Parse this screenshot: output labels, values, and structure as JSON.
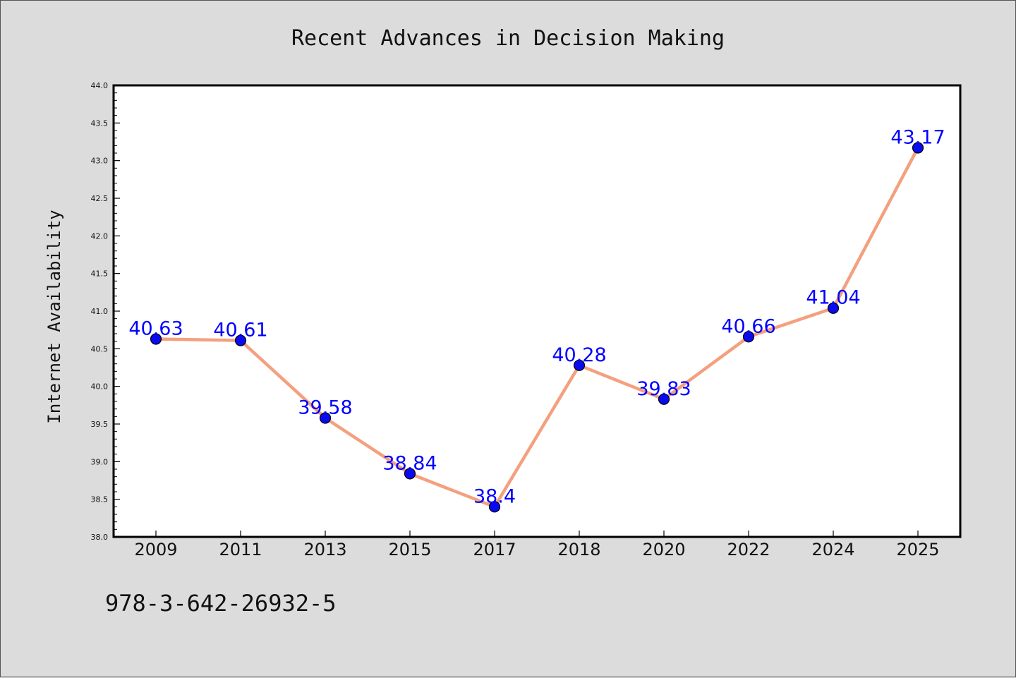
{
  "chart_data": {
    "type": "line",
    "title": "Recent Advances in Decision Making",
    "xlabel": "",
    "ylabel": "Internet Availability",
    "categories": [
      "2009",
      "2011",
      "2013",
      "2015",
      "2017",
      "2018",
      "2020",
      "2022",
      "2024",
      "2025"
    ],
    "values": [
      40.63,
      40.61,
      39.58,
      38.84,
      38.4,
      40.28,
      39.83,
      40.66,
      41.04,
      43.17
    ],
    "data_labels": [
      "40.63",
      "40.61",
      "39.58",
      "38.84",
      "38.4",
      "40.28",
      "39.83",
      "40.66",
      "41.04",
      "43.17"
    ],
    "ylim": [
      38.0,
      44.0
    ],
    "yticks": [
      "38.0",
      "38.5",
      "39.0",
      "39.5",
      "40.0",
      "40.5",
      "41.0",
      "41.5",
      "42.0",
      "42.5",
      "43.0",
      "43.5",
      "44.0"
    ],
    "grid": false,
    "legend": "none",
    "line_color": "#f4a07e",
    "marker_color": "#0a0af0",
    "label_color": "#0000ff"
  },
  "footer_text": "978-3-642-26932-5"
}
